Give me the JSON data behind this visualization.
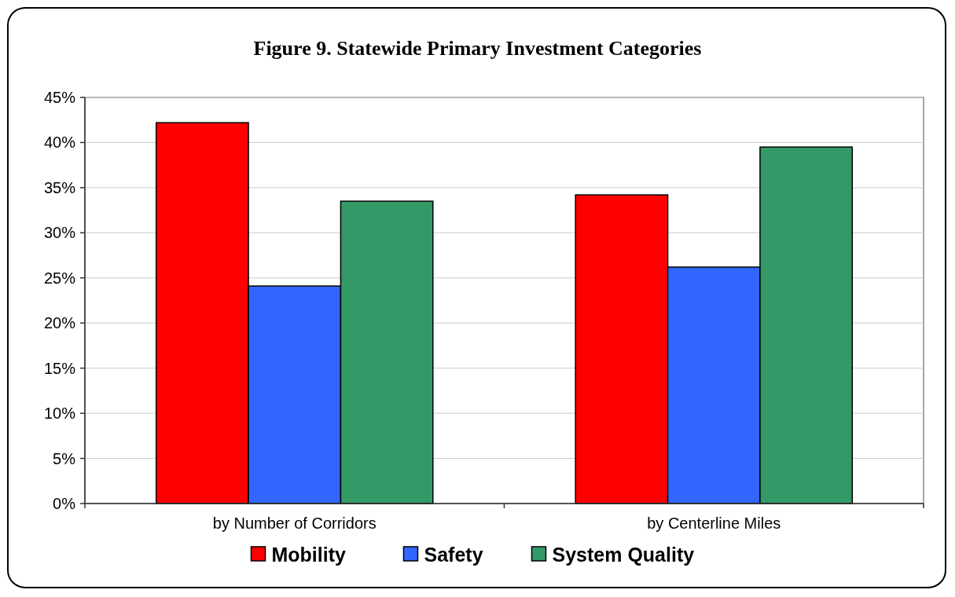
{
  "chart_data": {
    "type": "bar",
    "title": "Figure 9.  Statewide Primary Investment Categories",
    "categories": [
      "by Number of Corridors",
      "by Centerline Miles"
    ],
    "series": [
      {
        "name": "Mobility",
        "color": "#ff0000",
        "values": [
          42.2,
          34.2
        ]
      },
      {
        "name": "Safety",
        "color": "#3366ff",
        "values": [
          24.1,
          26.2
        ]
      },
      {
        "name": "System Quality",
        "color": "#339966",
        "values": [
          33.5,
          39.5
        ]
      }
    ],
    "ylim": [
      0,
      45
    ],
    "yticks": [
      {
        "value": 0,
        "label": "0%"
      },
      {
        "value": 5,
        "label": "5%"
      },
      {
        "value": 10,
        "label": "10%"
      },
      {
        "value": 15,
        "label": "15%"
      },
      {
        "value": 20,
        "label": "20%"
      },
      {
        "value": 25,
        "label": "25%"
      },
      {
        "value": 30,
        "label": "30%"
      },
      {
        "value": 35,
        "label": "35%"
      },
      {
        "value": 40,
        "label": "40%"
      },
      {
        "value": 45,
        "label": "45%"
      }
    ],
    "grid": "y",
    "legend": "bottom"
  }
}
